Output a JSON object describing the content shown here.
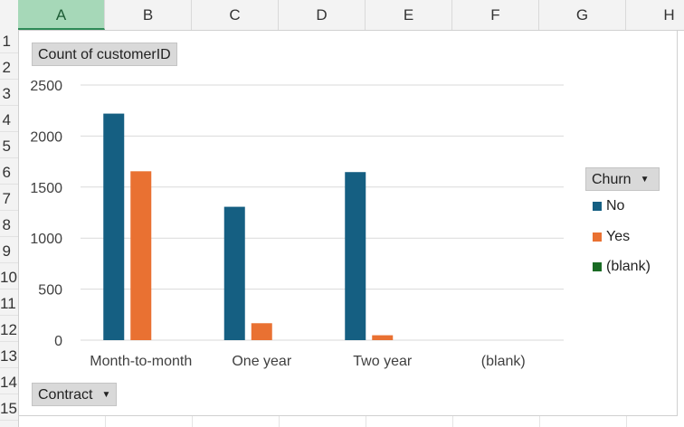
{
  "columns": [
    "A",
    "B",
    "C",
    "D",
    "E",
    "F",
    "G",
    "H"
  ],
  "rows": [
    "1",
    "2",
    "3",
    "4",
    "5",
    "6",
    "7",
    "8",
    "9",
    "10",
    "11",
    "12",
    "13",
    "14",
    "15"
  ],
  "chart": {
    "values_field": "Count of customerID",
    "axis_field": "Contract",
    "legend_field": "Churn",
    "colors": {
      "No": "#155f82",
      "Yes": "#e97132",
      "(blank)": "#196b24"
    }
  },
  "chart_data": {
    "type": "bar",
    "categories": [
      "Month-to-month",
      "One year",
      "Two year",
      "(blank)"
    ],
    "series": [
      {
        "name": "No",
        "values": [
          2220,
          1307,
          1647,
          0
        ]
      },
      {
        "name": "Yes",
        "values": [
          1655,
          166,
          48,
          0
        ]
      },
      {
        "name": "(blank)",
        "values": [
          0,
          0,
          0,
          0
        ]
      }
    ],
    "ylim": [
      0,
      2500
    ],
    "yticks": [
      0,
      500,
      1000,
      1500,
      2000,
      2500
    ],
    "grid": true,
    "legend_position": "right"
  }
}
